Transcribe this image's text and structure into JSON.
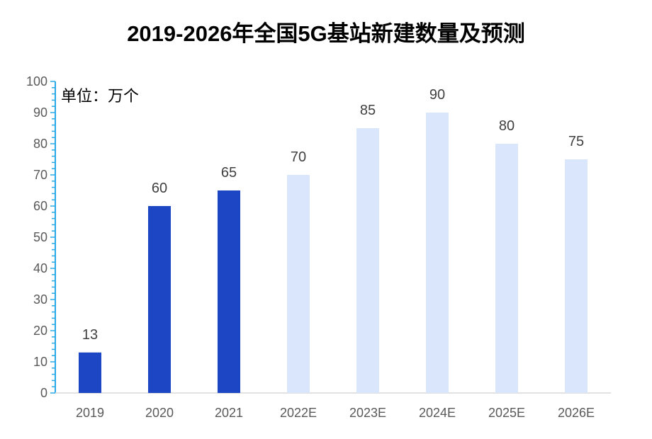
{
  "chart_data": {
    "type": "bar",
    "title": "2019-2026年全国5G基站新建数量及预测",
    "unit_label": "单位：万个",
    "categories": [
      "2019",
      "2020",
      "2021",
      "2022E",
      "2023E",
      "2024E",
      "2025E",
      "2026E"
    ],
    "values": [
      13,
      60,
      65,
      70,
      85,
      90,
      80,
      75
    ],
    "ylim": [
      0,
      100
    ],
    "yticks": [
      0,
      10,
      20,
      30,
      40,
      50,
      60,
      70,
      80,
      90,
      100
    ],
    "grid": false,
    "legend": "none",
    "colors": {
      "actual": "#1c46c4",
      "forecast": "#d9e6fb",
      "axis": "#29a9e8",
      "baseline": "#d9d9d9"
    },
    "forecast_from_index": 3
  }
}
